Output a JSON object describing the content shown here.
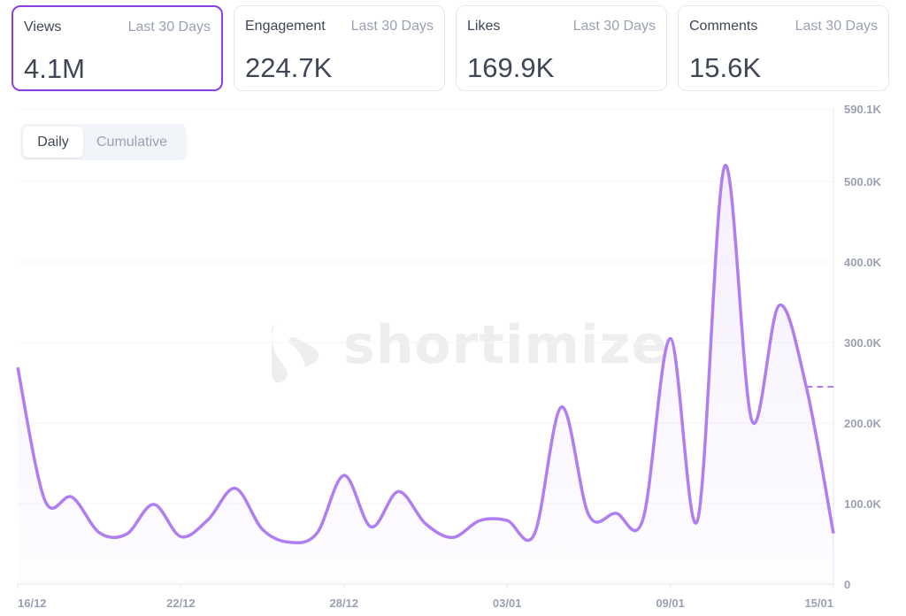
{
  "cards": [
    {
      "title": "Views",
      "period": "Last 30 Days",
      "value": "4.1M",
      "active": true
    },
    {
      "title": "Engagement",
      "period": "Last 30 Days",
      "value": "224.7K"
    },
    {
      "title": "Likes",
      "period": "Last 30 Days",
      "value": "169.9K"
    },
    {
      "title": "Comments",
      "period": "Last 30 Days",
      "value": "15.6K"
    }
  ],
  "toggle": {
    "daily": "Daily",
    "cumulative": "Cumulative",
    "selected": "Daily"
  },
  "watermark": "shortimize",
  "colors": {
    "accent": "#8b3fe6",
    "line": "#b07ef0"
  },
  "chart_data": {
    "type": "area",
    "title": "Views",
    "x_ticks": [
      "16/12",
      "22/12",
      "28/12",
      "03/01",
      "09/01",
      "15/01"
    ],
    "y_ticks": [
      "0",
      "100.0K",
      "200.0K",
      "300.0K",
      "400.0K",
      "500.0K",
      "590.1K"
    ],
    "ylim": [
      0,
      590100
    ],
    "start_date": "16/12",
    "days": 31,
    "series": [
      {
        "name": "Views",
        "values": [
          269000,
          104000,
          108000,
          64000,
          62000,
          99000,
          59000,
          80000,
          119000,
          68000,
          52000,
          63000,
          135000,
          71000,
          115000,
          75000,
          58000,
          79000,
          79000,
          62000,
          220000,
          86000,
          88000,
          81000,
          305000,
          79000,
          519000,
          203000,
          346000,
          245000,
          63000
        ]
      }
    ],
    "reference_line": {
      "value": 245000,
      "style": "dashed"
    },
    "grid": true
  }
}
